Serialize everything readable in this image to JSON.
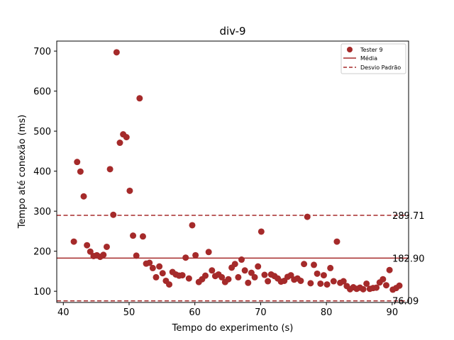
{
  "chart_data": {
    "type": "scatter",
    "title": "div-9",
    "xlabel": "Tempo do experimento (s)",
    "ylabel": "Tempo até conexão (ms)",
    "xlim": [
      39,
      92.5
    ],
    "ylim": [
      72,
      725
    ],
    "xticks": [
      40,
      50,
      60,
      70,
      80,
      90
    ],
    "yticks": [
      100,
      200,
      300,
      400,
      500,
      600,
      700
    ],
    "grid": false,
    "legend_position": "top-right",
    "colors": {
      "points": "#a52a2a",
      "lines": "#a52a2a"
    },
    "legend": [
      {
        "label": "Tester 9",
        "kind": "marker"
      },
      {
        "label": "Média",
        "kind": "solid-line"
      },
      {
        "label": "Desvio Padrão",
        "kind": "dashed-line"
      }
    ],
    "reference_lines": [
      {
        "name": "mean",
        "value": 182.9,
        "label": "182.90",
        "style": "solid"
      },
      {
        "name": "upper-std",
        "value": 289.71,
        "label": "289.71",
        "style": "dashed"
      },
      {
        "name": "lower-std",
        "value": 76.09,
        "label": "76.09",
        "style": "dashed"
      }
    ],
    "series": [
      {
        "name": "Tester 9",
        "points": [
          [
            41.6,
            224
          ],
          [
            42.1,
            423
          ],
          [
            42.6,
            399
          ],
          [
            43.1,
            337
          ],
          [
            43.6,
            215
          ],
          [
            44.1,
            199
          ],
          [
            44.6,
            188
          ],
          [
            45.1,
            190
          ],
          [
            45.6,
            186
          ],
          [
            46.1,
            191
          ],
          [
            46.6,
            211
          ],
          [
            47.1,
            405
          ],
          [
            47.6,
            291
          ],
          [
            48.1,
            697
          ],
          [
            48.6,
            471
          ],
          [
            49.1,
            492
          ],
          [
            49.6,
            485
          ],
          [
            50.1,
            351
          ],
          [
            50.6,
            239
          ],
          [
            51.1,
            189
          ],
          [
            51.6,
            582
          ],
          [
            52.1,
            237
          ],
          [
            52.6,
            169
          ],
          [
            53.1,
            171
          ],
          [
            53.6,
            158
          ],
          [
            54.1,
            135
          ],
          [
            54.6,
            162
          ],
          [
            55.1,
            145
          ],
          [
            55.6,
            126
          ],
          [
            56.1,
            117
          ],
          [
            56.6,
            148
          ],
          [
            57.1,
            142
          ],
          [
            57.6,
            139
          ],
          [
            58.1,
            140
          ],
          [
            58.6,
            184
          ],
          [
            59.1,
            132
          ],
          [
            59.6,
            265
          ],
          [
            60.1,
            190
          ],
          [
            60.6,
            123
          ],
          [
            61.1,
            130
          ],
          [
            61.6,
            139
          ],
          [
            62.1,
            198
          ],
          [
            62.6,
            152
          ],
          [
            63.1,
            138
          ],
          [
            63.6,
            142
          ],
          [
            64.1,
            135
          ],
          [
            64.6,
            123
          ],
          [
            65.1,
            130
          ],
          [
            65.6,
            159
          ],
          [
            66.1,
            168
          ],
          [
            66.6,
            135
          ],
          [
            67.1,
            179
          ],
          [
            67.6,
            152
          ],
          [
            68.1,
            121
          ],
          [
            68.6,
            146
          ],
          [
            69.1,
            135
          ],
          [
            69.6,
            162
          ],
          [
            70.1,
            249
          ],
          [
            70.6,
            141
          ],
          [
            71.1,
            125
          ],
          [
            71.6,
            142
          ],
          [
            72.1,
            138
          ],
          [
            72.6,
            132
          ],
          [
            73.1,
            124
          ],
          [
            73.6,
            126
          ],
          [
            74.1,
            136
          ],
          [
            74.6,
            140
          ],
          [
            75.1,
            129
          ],
          [
            75.6,
            132
          ],
          [
            76.1,
            126
          ],
          [
            76.6,
            168
          ],
          [
            77.1,
            286
          ],
          [
            77.6,
            120
          ],
          [
            78.1,
            166
          ],
          [
            78.6,
            144
          ],
          [
            79.1,
            119
          ],
          [
            79.6,
            140
          ],
          [
            80.1,
            117
          ],
          [
            80.6,
            158
          ],
          [
            81.1,
            125
          ],
          [
            81.6,
            224
          ],
          [
            82.1,
            121
          ],
          [
            82.6,
            125
          ],
          [
            83.1,
            113
          ],
          [
            83.6,
            105
          ],
          [
            84.1,
            110
          ],
          [
            84.6,
            106
          ],
          [
            85.1,
            109
          ],
          [
            85.6,
            105
          ],
          [
            86.1,
            119
          ],
          [
            86.6,
            106
          ],
          [
            87.1,
            108
          ],
          [
            87.6,
            109
          ],
          [
            88.1,
            122
          ],
          [
            88.6,
            130
          ],
          [
            89.1,
            115
          ],
          [
            89.6,
            153
          ],
          [
            90.1,
            104
          ],
          [
            90.6,
            108
          ],
          [
            91.1,
            114
          ]
        ]
      }
    ]
  }
}
